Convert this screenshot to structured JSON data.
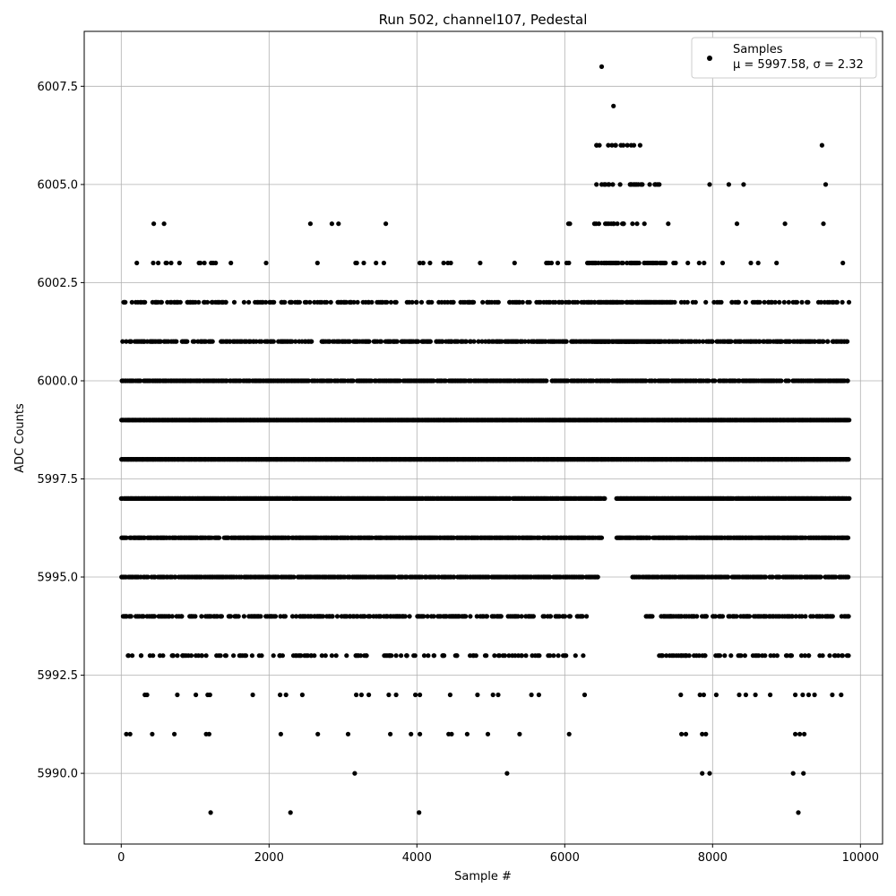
{
  "chart_data": {
    "type": "scatter",
    "title": "Run 502, channel107, Pedestal",
    "xlabel": "Sample #",
    "ylabel": "ADC Counts",
    "xlim": [
      -500,
      10300
    ],
    "ylim": [
      5988.2,
      6008.9
    ],
    "xticks": [
      0,
      2000,
      4000,
      6000,
      8000,
      10000
    ],
    "xtick_labels": [
      "0",
      "2000",
      "4000",
      "6000",
      "8000",
      "10000"
    ],
    "yticks": [
      5990.0,
      5992.5,
      5995.0,
      5997.5,
      6000.0,
      6002.5,
      6005.0,
      6007.5
    ],
    "ytick_labels": [
      "5990.0",
      "5992.5",
      "5995.0",
      "5997.5",
      "6000.0",
      "6002.5",
      "6005.0",
      "6007.5"
    ],
    "grid": true,
    "legend_position": "top-right",
    "series": [
      {
        "name": "Samples",
        "stats_label": "μ = 5997.58, σ = 2.32",
        "color": "#000000",
        "marker": "circle",
        "n_samples": 9850,
        "level_density": [
          {
            "y": 6001,
            "ranges": [
              [
                0,
                1250,
                0.55
              ],
              [
                1350,
                9850,
                0.55
              ],
              [
                6400,
                7300,
                0.9
              ]
            ]
          },
          {
            "y": 6000,
            "ranges": [
              [
                0,
                9850,
                0.75
              ]
            ]
          },
          {
            "y": 5999,
            "ranges": [
              [
                0,
                9850,
                1.0
              ]
            ]
          },
          {
            "y": 5998,
            "ranges": [
              [
                0,
                9850,
                1.0
              ]
            ]
          },
          {
            "y": 5997,
            "ranges": [
              [
                0,
                6550,
                0.95
              ],
              [
                6700,
                9850,
                0.95
              ]
            ]
          },
          {
            "y": 5996,
            "ranges": [
              [
                0,
                6500,
                0.85
              ],
              [
                6700,
                9850,
                0.85
              ]
            ]
          },
          {
            "y": 5995,
            "ranges": [
              [
                0,
                6450,
                0.7
              ],
              [
                6900,
                9850,
                0.7
              ]
            ]
          },
          {
            "y": 6002,
            "ranges": [
              [
                0,
                6300,
                0.3
              ],
              [
                6300,
                7450,
                0.8
              ],
              [
                7450,
                9850,
                0.25
              ]
            ]
          },
          {
            "y": 5994,
            "ranges": [
              [
                0,
                6300,
                0.45
              ],
              [
                7100,
                9850,
                0.45
              ]
            ]
          },
          {
            "y": 5993,
            "ranges": [
              [
                0,
                6300,
                0.15
              ],
              [
                7250,
                9850,
                0.2
              ]
            ]
          },
          {
            "y": 6003,
            "ranges": [
              [
                0,
                6300,
                0.05
              ],
              [
                6300,
                7350,
                0.55
              ],
              [
                7350,
                9850,
                0.06
              ]
            ]
          },
          {
            "y": 6004,
            "ranges": [
              [
                6400,
                7100,
                0.35
              ]
            ]
          },
          {
            "y": 6005,
            "ranges": [
              [
                6400,
                7300,
                0.15
              ]
            ]
          },
          {
            "y": 6006,
            "ranges": [
              [
                6400,
                7050,
                0.1
              ]
            ]
          }
        ],
        "points": [
          [
            100,
            5993
          ],
          [
            150,
            5993
          ],
          [
            270,
            5993
          ],
          [
            390,
            5993
          ],
          [
            430,
            5993
          ],
          [
            700,
            5993
          ],
          [
            830,
            5993
          ],
          [
            910,
            5993
          ],
          [
            1010,
            5993
          ],
          [
            1150,
            5993
          ],
          [
            1290,
            5993
          ],
          [
            1420,
            5993
          ],
          [
            1600,
            5993
          ],
          [
            1670,
            5993
          ],
          [
            1900,
            5993
          ],
          [
            2060,
            5993
          ],
          [
            2150,
            5993
          ],
          [
            2330,
            5993
          ],
          [
            2480,
            5993
          ],
          [
            2570,
            5993
          ],
          [
            2850,
            5993
          ],
          [
            3240,
            5993
          ],
          [
            3320,
            5993
          ],
          [
            3560,
            5993
          ],
          [
            3720,
            5993
          ],
          [
            3860,
            5993
          ],
          [
            4100,
            5993
          ],
          [
            4230,
            5993
          ],
          [
            4350,
            5993
          ],
          [
            4540,
            5993
          ],
          [
            4720,
            5993
          ],
          [
            4800,
            5993
          ],
          [
            5050,
            5993
          ],
          [
            5190,
            5993
          ],
          [
            5420,
            5993
          ],
          [
            5560,
            5993
          ],
          [
            5800,
            5993
          ],
          [
            5980,
            5993
          ],
          [
            6250,
            5993
          ],
          [
            7280,
            5993
          ],
          [
            7420,
            5993
          ],
          [
            7600,
            5993
          ],
          [
            7750,
            5993
          ],
          [
            7900,
            5993
          ],
          [
            8100,
            5993
          ],
          [
            8350,
            5993
          ],
          [
            8600,
            5993
          ],
          [
            8830,
            5993
          ],
          [
            9050,
            5993
          ],
          [
            9250,
            5993
          ],
          [
            9450,
            5993
          ],
          [
            9650,
            5993
          ],
          [
            9820,
            5993
          ],
          [
            320,
            5992
          ],
          [
            350,
            5992
          ],
          [
            760,
            5992
          ],
          [
            1010,
            5992
          ],
          [
            1170,
            5992
          ],
          [
            1200,
            5992
          ],
          [
            1780,
            5992
          ],
          [
            2150,
            5992
          ],
          [
            2230,
            5992
          ],
          [
            2450,
            5992
          ],
          [
            3180,
            5992
          ],
          [
            3250,
            5992
          ],
          [
            3350,
            5992
          ],
          [
            3620,
            5992
          ],
          [
            3720,
            5992
          ],
          [
            3980,
            5992
          ],
          [
            4040,
            5992
          ],
          [
            4450,
            5992
          ],
          [
            4820,
            5992
          ],
          [
            5030,
            5992
          ],
          [
            5100,
            5992
          ],
          [
            5550,
            5992
          ],
          [
            5650,
            5992
          ],
          [
            6270,
            5992
          ],
          [
            7570,
            5992
          ],
          [
            7830,
            5992
          ],
          [
            7880,
            5992
          ],
          [
            8050,
            5992
          ],
          [
            8360,
            5992
          ],
          [
            8450,
            5992
          ],
          [
            8580,
            5992
          ],
          [
            8780,
            5992
          ],
          [
            9120,
            5992
          ],
          [
            9220,
            5992
          ],
          [
            9300,
            5992
          ],
          [
            9380,
            5992
          ],
          [
            9620,
            5992
          ],
          [
            9740,
            5992
          ],
          [
            70,
            5991
          ],
          [
            120,
            5991
          ],
          [
            420,
            5991
          ],
          [
            720,
            5991
          ],
          [
            1150,
            5991
          ],
          [
            1190,
            5991
          ],
          [
            2160,
            5991
          ],
          [
            2660,
            5991
          ],
          [
            3070,
            5991
          ],
          [
            3640,
            5991
          ],
          [
            3920,
            5991
          ],
          [
            4040,
            5991
          ],
          [
            4430,
            5991
          ],
          [
            4470,
            5991
          ],
          [
            4680,
            5991
          ],
          [
            4960,
            5991
          ],
          [
            5390,
            5991
          ],
          [
            6060,
            5991
          ],
          [
            7580,
            5991
          ],
          [
            7640,
            5991
          ],
          [
            7860,
            5991
          ],
          [
            7910,
            5991
          ],
          [
            9120,
            5991
          ],
          [
            9180,
            5991
          ],
          [
            9240,
            5991
          ],
          [
            3160,
            5990
          ],
          [
            5220,
            5990
          ],
          [
            7860,
            5990
          ],
          [
            7960,
            5990
          ],
          [
            9090,
            5990
          ],
          [
            9230,
            5990
          ],
          [
            1210,
            5989
          ],
          [
            2290,
            5989
          ],
          [
            4030,
            5989
          ],
          [
            9160,
            5989
          ],
          [
            440,
            6004
          ],
          [
            580,
            6004
          ],
          [
            2560,
            6004
          ],
          [
            2850,
            6004
          ],
          [
            2940,
            6004
          ],
          [
            3580,
            6004
          ],
          [
            6050,
            6004
          ],
          [
            6070,
            6004
          ],
          [
            7400,
            6004
          ],
          [
            8330,
            6004
          ],
          [
            8980,
            6004
          ],
          [
            9500,
            6004
          ],
          [
            6430,
            6005
          ],
          [
            6500,
            6005
          ],
          [
            6550,
            6005
          ],
          [
            6600,
            6005
          ],
          [
            6650,
            6005
          ],
          [
            6750,
            6005
          ],
          [
            6900,
            6005
          ],
          [
            7050,
            6005
          ],
          [
            7230,
            6005
          ],
          [
            7280,
            6005
          ],
          [
            7960,
            6005
          ],
          [
            8220,
            6005
          ],
          [
            8420,
            6005
          ],
          [
            9530,
            6005
          ],
          [
            6430,
            6006
          ],
          [
            6470,
            6006
          ],
          [
            6590,
            6006
          ],
          [
            6640,
            6006
          ],
          [
            6690,
            6006
          ],
          [
            6760,
            6006
          ],
          [
            6900,
            6006
          ],
          [
            7020,
            6006
          ],
          [
            9480,
            6006
          ],
          [
            6660,
            6007
          ],
          [
            6500,
            6008
          ]
        ]
      }
    ]
  }
}
